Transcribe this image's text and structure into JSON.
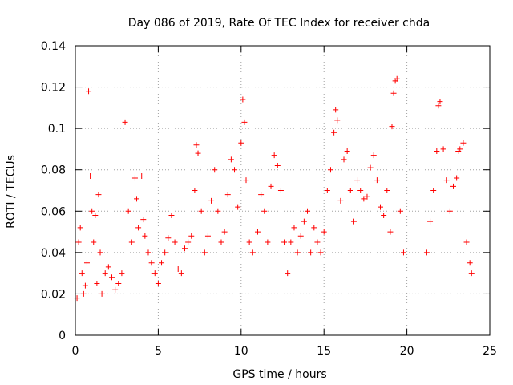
{
  "chart_data": {
    "type": "scatter",
    "title": "Day 086 of 2019, Rate Of TEC Index for receiver chda",
    "xlabel": "GPS time / hours",
    "ylabel": "ROTI / TECUs",
    "xlim": [
      0,
      25
    ],
    "ylim": [
      0,
      0.14
    ],
    "xticks": [
      0,
      5,
      10,
      15,
      20,
      25
    ],
    "xtick_labels": [
      "0",
      "5",
      "10",
      "15",
      "20",
      "25"
    ],
    "yticks": [
      0,
      0.02,
      0.04,
      0.06,
      0.08,
      0.1,
      0.12,
      0.14
    ],
    "ytick_labels": [
      "0",
      "0.02",
      "0.04",
      "0.06",
      "0.08",
      "0.1",
      "0.12",
      "0.14"
    ],
    "grid": true,
    "marker": "+",
    "color": "#ff0000",
    "series": [
      {
        "name": "ROTI",
        "points": [
          [
            0.1,
            0.018
          ],
          [
            0.2,
            0.045
          ],
          [
            0.3,
            0.052
          ],
          [
            0.4,
            0.03
          ],
          [
            0.5,
            0.02
          ],
          [
            0.6,
            0.024
          ],
          [
            0.7,
            0.035
          ],
          [
            0.8,
            0.118
          ],
          [
            0.9,
            0.077
          ],
          [
            1.0,
            0.06
          ],
          [
            1.1,
            0.045
          ],
          [
            1.2,
            0.058
          ],
          [
            1.3,
            0.025
          ],
          [
            1.4,
            0.068
          ],
          [
            1.5,
            0.04
          ],
          [
            1.6,
            0.02
          ],
          [
            1.8,
            0.03
          ],
          [
            2.0,
            0.033
          ],
          [
            2.2,
            0.028
          ],
          [
            2.4,
            0.022
          ],
          [
            2.6,
            0.025
          ],
          [
            2.8,
            0.03
          ],
          [
            3.0,
            0.103
          ],
          [
            3.2,
            0.06
          ],
          [
            3.4,
            0.045
          ],
          [
            3.6,
            0.076
          ],
          [
            3.7,
            0.066
          ],
          [
            3.8,
            0.052
          ],
          [
            4.0,
            0.077
          ],
          [
            4.1,
            0.056
          ],
          [
            4.2,
            0.048
          ],
          [
            4.4,
            0.04
          ],
          [
            4.6,
            0.035
          ],
          [
            4.8,
            0.03
          ],
          [
            5.0,
            0.025
          ],
          [
            5.2,
            0.035
          ],
          [
            5.4,
            0.04
          ],
          [
            5.6,
            0.047
          ],
          [
            5.8,
            0.058
          ],
          [
            6.0,
            0.045
          ],
          [
            6.2,
            0.032
          ],
          [
            6.4,
            0.03
          ],
          [
            6.6,
            0.042
          ],
          [
            6.8,
            0.045
          ],
          [
            7.0,
            0.048
          ],
          [
            7.2,
            0.07
          ],
          [
            7.3,
            0.092
          ],
          [
            7.4,
            0.088
          ],
          [
            7.6,
            0.06
          ],
          [
            7.8,
            0.04
          ],
          [
            8.0,
            0.048
          ],
          [
            8.2,
            0.065
          ],
          [
            8.4,
            0.08
          ],
          [
            8.6,
            0.06
          ],
          [
            8.8,
            0.045
          ],
          [
            9.0,
            0.05
          ],
          [
            9.2,
            0.068
          ],
          [
            9.4,
            0.085
          ],
          [
            9.6,
            0.08
          ],
          [
            9.8,
            0.062
          ],
          [
            10.0,
            0.093
          ],
          [
            10.1,
            0.114
          ],
          [
            10.2,
            0.103
          ],
          [
            10.3,
            0.075
          ],
          [
            10.5,
            0.045
          ],
          [
            10.7,
            0.04
          ],
          [
            11.0,
            0.05
          ],
          [
            11.2,
            0.068
          ],
          [
            11.4,
            0.06
          ],
          [
            11.6,
            0.045
          ],
          [
            11.8,
            0.072
          ],
          [
            12.0,
            0.087
          ],
          [
            12.2,
            0.082
          ],
          [
            12.4,
            0.07
          ],
          [
            12.6,
            0.045
          ],
          [
            12.8,
            0.03
          ],
          [
            13.0,
            0.045
          ],
          [
            13.2,
            0.052
          ],
          [
            13.4,
            0.04
          ],
          [
            13.6,
            0.048
          ],
          [
            13.8,
            0.055
          ],
          [
            14.0,
            0.06
          ],
          [
            14.2,
            0.04
          ],
          [
            14.4,
            0.052
          ],
          [
            14.6,
            0.045
          ],
          [
            14.8,
            0.04
          ],
          [
            15.0,
            0.05
          ],
          [
            15.2,
            0.07
          ],
          [
            15.4,
            0.08
          ],
          [
            15.6,
            0.098
          ],
          [
            15.7,
            0.109
          ],
          [
            15.8,
            0.104
          ],
          [
            16.0,
            0.065
          ],
          [
            16.2,
            0.085
          ],
          [
            16.4,
            0.089
          ],
          [
            16.6,
            0.07
          ],
          [
            16.8,
            0.055
          ],
          [
            17.0,
            0.075
          ],
          [
            17.2,
            0.07
          ],
          [
            17.4,
            0.066
          ],
          [
            17.6,
            0.067
          ],
          [
            17.8,
            0.081
          ],
          [
            18.0,
            0.087
          ],
          [
            18.2,
            0.075
          ],
          [
            18.4,
            0.062
          ],
          [
            18.6,
            0.058
          ],
          [
            18.8,
            0.07
          ],
          [
            19.0,
            0.05
          ],
          [
            19.1,
            0.101
          ],
          [
            19.2,
            0.117
          ],
          [
            19.3,
            0.123
          ],
          [
            19.4,
            0.124
          ],
          [
            19.6,
            0.06
          ],
          [
            19.8,
            0.04
          ],
          [
            21.2,
            0.04
          ],
          [
            21.4,
            0.055
          ],
          [
            21.6,
            0.07
          ],
          [
            21.8,
            0.089
          ],
          [
            21.9,
            0.111
          ],
          [
            22.0,
            0.113
          ],
          [
            22.2,
            0.09
          ],
          [
            22.4,
            0.075
          ],
          [
            22.6,
            0.06
          ],
          [
            22.8,
            0.072
          ],
          [
            23.0,
            0.076
          ],
          [
            23.1,
            0.089
          ],
          [
            23.2,
            0.09
          ],
          [
            23.4,
            0.093
          ],
          [
            23.6,
            0.045
          ],
          [
            23.8,
            0.035
          ],
          [
            23.9,
            0.03
          ]
        ]
      }
    ]
  }
}
